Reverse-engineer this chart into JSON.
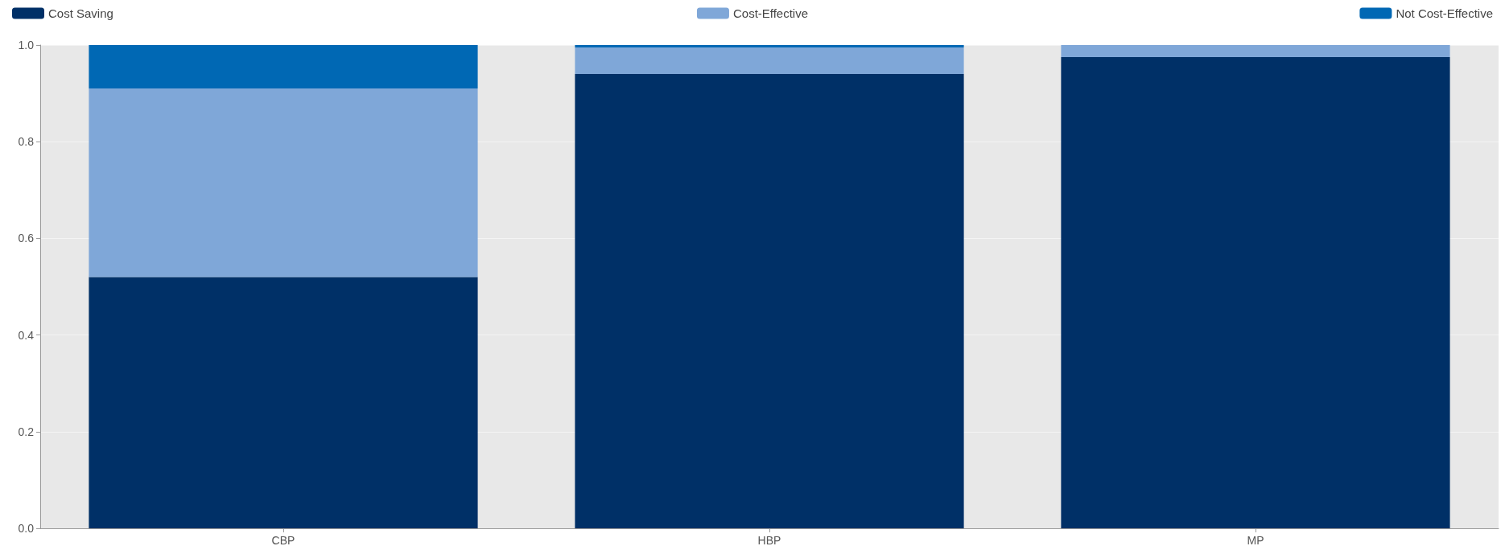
{
  "chart_data": {
    "type": "bar",
    "stacked": true,
    "categories": [
      "CBP",
      "HBP",
      "MP"
    ],
    "series": [
      {
        "name": "Cost Saving",
        "color": "#003067",
        "values": [
          0.52,
          0.94,
          0.975
        ]
      },
      {
        "name": "Cost-Effective",
        "color": "#7fa7d8",
        "values": [
          0.39,
          0.055,
          0.025
        ]
      },
      {
        "name": "Not Cost-Effective",
        "color": "#0068b4",
        "values": [
          0.09,
          0.005,
          0
        ]
      }
    ],
    "ylim": [
      0,
      1
    ],
    "yticks": [
      {
        "value": 0,
        "label": "0.0"
      },
      0.2,
      0.4,
      0.6,
      0.8,
      {
        "value": 1,
        "label": "1.0"
      }
    ],
    "grid": "y",
    "legend": "top"
  }
}
